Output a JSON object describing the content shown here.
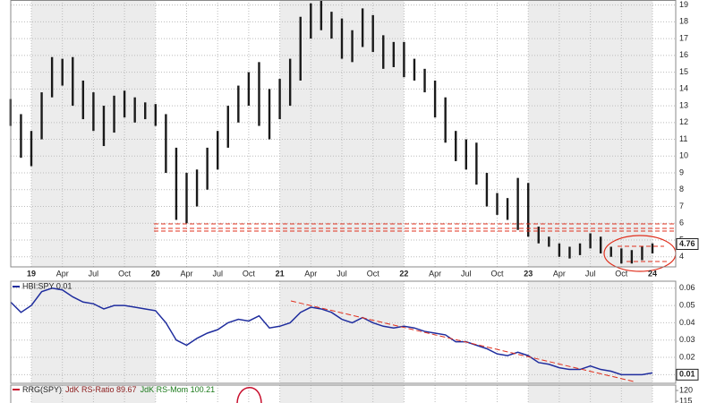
{
  "chart_data": [
    {
      "type": "range-bar",
      "categories": [
        null,
        null,
        "19",
        null,
        null,
        "Apr",
        null,
        null,
        "Jul",
        null,
        null,
        "Oct",
        null,
        null,
        "20",
        null,
        null,
        "Apr",
        null,
        null,
        "Jul",
        null,
        null,
        "Oct",
        null,
        null,
        "21",
        null,
        null,
        "Apr",
        null,
        null,
        "Jul",
        null,
        null,
        "Oct",
        null,
        null,
        "22",
        null,
        null,
        "Apr",
        null,
        null,
        "Jul",
        null,
        null,
        "Oct",
        null,
        null,
        "23",
        null,
        null,
        "Apr",
        null,
        null,
        "Jul",
        null,
        null,
        "Oct",
        null,
        null,
        "24"
      ],
      "high": [
        13.4,
        12.5,
        11.5,
        13.8,
        15.9,
        15.8,
        15.9,
        14.5,
        13.8,
        13.0,
        13.6,
        13.9,
        13.5,
        13.2,
        13.1,
        12.5,
        10.5,
        9.0,
        9.2,
        10.5,
        11.5,
        13.0,
        14.2,
        15.0,
        15.6,
        14.0,
        14.6,
        15.8,
        18.3,
        19.1,
        19.4,
        18.6,
        18.2,
        17.5,
        18.8,
        18.4,
        17.2,
        16.8,
        16.8,
        15.8,
        15.2,
        14.5,
        13.5,
        11.5,
        11.0,
        10.8,
        9.0,
        7.8,
        7.5,
        8.7,
        8.4,
        5.8,
        5.2,
        4.8,
        4.6,
        4.8,
        5.4,
        5.2,
        4.6,
        4.5,
        4.4,
        4.6,
        4.8
      ],
      "low": [
        11.8,
        9.9,
        9.4,
        11.0,
        13.5,
        14.2,
        13.0,
        12.2,
        11.5,
        10.6,
        11.4,
        12.3,
        12.0,
        12.2,
        11.8,
        9.0,
        6.2,
        6.0,
        7.0,
        8.0,
        9.2,
        10.5,
        12.0,
        13.0,
        11.8,
        11.0,
        12.2,
        13.0,
        14.5,
        17.0,
        17.5,
        17.0,
        15.8,
        15.6,
        16.5,
        16.2,
        15.2,
        15.3,
        14.7,
        14.5,
        13.8,
        12.3,
        10.8,
        9.7,
        9.2,
        8.3,
        7.0,
        6.5,
        6.2,
        5.6,
        5.2,
        4.8,
        4.6,
        4.0,
        3.9,
        4.1,
        4.5,
        4.2,
        4.0,
        3.6,
        3.6,
        3.8,
        4.2
      ],
      "color": "#1a1a1a",
      "last_value": 4.76,
      "ylim": [
        3.4,
        19.3
      ],
      "yticks": [
        4,
        5,
        6,
        7,
        8,
        9,
        10,
        11,
        12,
        13,
        14,
        15,
        16,
        17,
        18,
        19
      ],
      "grid": true
    },
    {
      "type": "line",
      "title": "HBI:SPY 0.01",
      "values": [
        0.052,
        0.046,
        0.05,
        0.058,
        0.06,
        0.059,
        0.055,
        0.052,
        0.051,
        0.048,
        0.05,
        0.05,
        0.049,
        0.048,
        0.047,
        0.04,
        0.03,
        0.027,
        0.031,
        0.034,
        0.036,
        0.04,
        0.042,
        0.041,
        0.044,
        0.037,
        0.038,
        0.04,
        0.046,
        0.049,
        0.048,
        0.046,
        0.042,
        0.04,
        0.043,
        0.04,
        0.038,
        0.037,
        0.038,
        0.037,
        0.035,
        0.034,
        0.033,
        0.029,
        0.029,
        0.027,
        0.025,
        0.022,
        0.021,
        0.023,
        0.021,
        0.017,
        0.016,
        0.014,
        0.013,
        0.013,
        0.015,
        0.013,
        0.012,
        0.01,
        0.01,
        0.01,
        0.011
      ],
      "color": "#1f2d9e",
      "last_value": 0.01,
      "ylim": [
        0.005,
        0.063
      ],
      "yticks": [
        0.06,
        0.05,
        0.04,
        0.03,
        0.02,
        0.01
      ],
      "grid": true
    },
    {
      "type": "panel",
      "title_parts": [
        "RRG(SPY)",
        "JdK RS-Ratio 89.67",
        "JdK RS-Mom 100.21"
      ],
      "title_colors": [
        "#222222",
        "#8b1a1a",
        "#1a7a1a"
      ],
      "ylim": [
        114.2,
        122.5
      ],
      "yticks": [
        120,
        115
      ],
      "grid": true
    }
  ]
}
